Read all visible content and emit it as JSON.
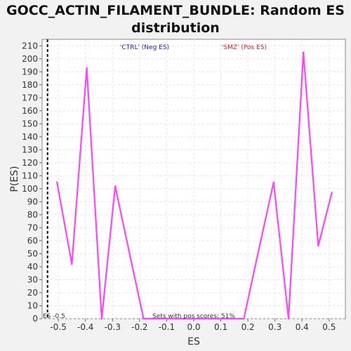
{
  "chart_data": {
    "type": "line",
    "title_line1": "GOCC_ACTIN_FILAMENT_BUNDLE: Random ES",
    "title_line2": "distribution",
    "xlabel": "ES",
    "ylabel": "P(ES)",
    "xlim": [
      -0.56,
      0.56
    ],
    "ylim": [
      0,
      215
    ],
    "x_ticks": [
      -0.5,
      -0.4,
      -0.3,
      -0.2,
      -0.1,
      0.0,
      0.1,
      0.2,
      0.3,
      0.4,
      0.5
    ],
    "x_tick_labels": [
      "-0.5",
      "-0.4",
      "-0.3",
      "-0.2",
      "-0.1",
      "0.0",
      "0.1",
      "0.2",
      "0.3",
      "0.4",
      "0.5"
    ],
    "y_ticks": [
      0,
      10,
      20,
      30,
      40,
      50,
      60,
      70,
      80,
      90,
      100,
      110,
      120,
      130,
      140,
      150,
      160,
      170,
      180,
      190,
      200,
      210
    ],
    "grid": true,
    "series": [
      {
        "color": "#ff44ff",
        "x": [
          -0.505,
          -0.45,
          -0.395,
          -0.34,
          -0.29,
          -0.235,
          -0.185,
          0.185,
          0.235,
          0.295,
          0.35,
          0.405,
          0.46,
          0.51
        ],
        "y": [
          105,
          42,
          193,
          0,
          102,
          48,
          0,
          0,
          48,
          105,
          0,
          205,
          56,
          97
        ]
      }
    ],
    "marker_line": {
      "x": -0.54,
      "label": "ES -0.5"
    },
    "legend": [
      {
        "label": "'CTRL' (Neg ES)",
        "color": "#2222cc"
      },
      {
        "label": "'SMZ' (Pos ES)",
        "color": "#dd2222"
      }
    ],
    "annotation": "Sets with pos scores: 51%"
  }
}
